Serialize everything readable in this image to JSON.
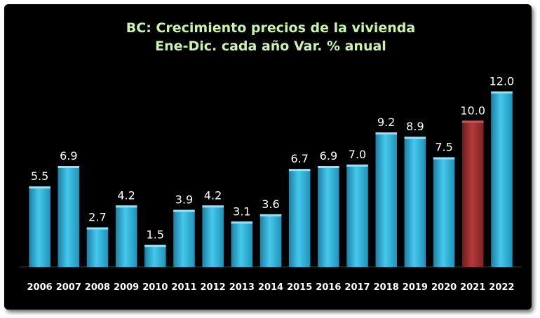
{
  "chart_data": {
    "type": "bar",
    "title": "BC: Crecimiento precios de la vivienda",
    "subtitle": "Ene-Dic. cada año Var. % anual",
    "xlabel": "",
    "ylabel": "",
    "categories": [
      "2006",
      "2007",
      "2008",
      "2009",
      "2010",
      "2011",
      "2012",
      "2013",
      "2014",
      "2015",
      "2016",
      "2017",
      "2018",
      "2019",
      "2020",
      "2021",
      "2022"
    ],
    "series": [
      {
        "values": [
          5.5,
          6.9,
          2.7,
          4.2,
          1.5,
          3.9,
          4.2,
          3.1,
          3.6,
          6.7,
          6.9,
          7.0,
          9.2,
          8.9,
          7.5,
          10.0,
          12.0
        ],
        "labels": [
          "5.5",
          "6.9",
          "2.7",
          "4.2",
          "1.5",
          "3.9",
          "4.2",
          "3.1",
          "3.6",
          "6.7",
          "6.9",
          "7.0",
          "9.2",
          "8.9",
          "7.5",
          "10.0",
          "12.0"
        ]
      }
    ],
    "ylim": [
      0,
      12.6
    ],
    "grid": false,
    "legend": "none",
    "highlight_index": 15,
    "colors": {
      "bar": "#2bb3d9",
      "highlight": "#9b2d2d",
      "background": "#000000",
      "title": "#c8f5a8",
      "text": "#ffffff"
    }
  }
}
